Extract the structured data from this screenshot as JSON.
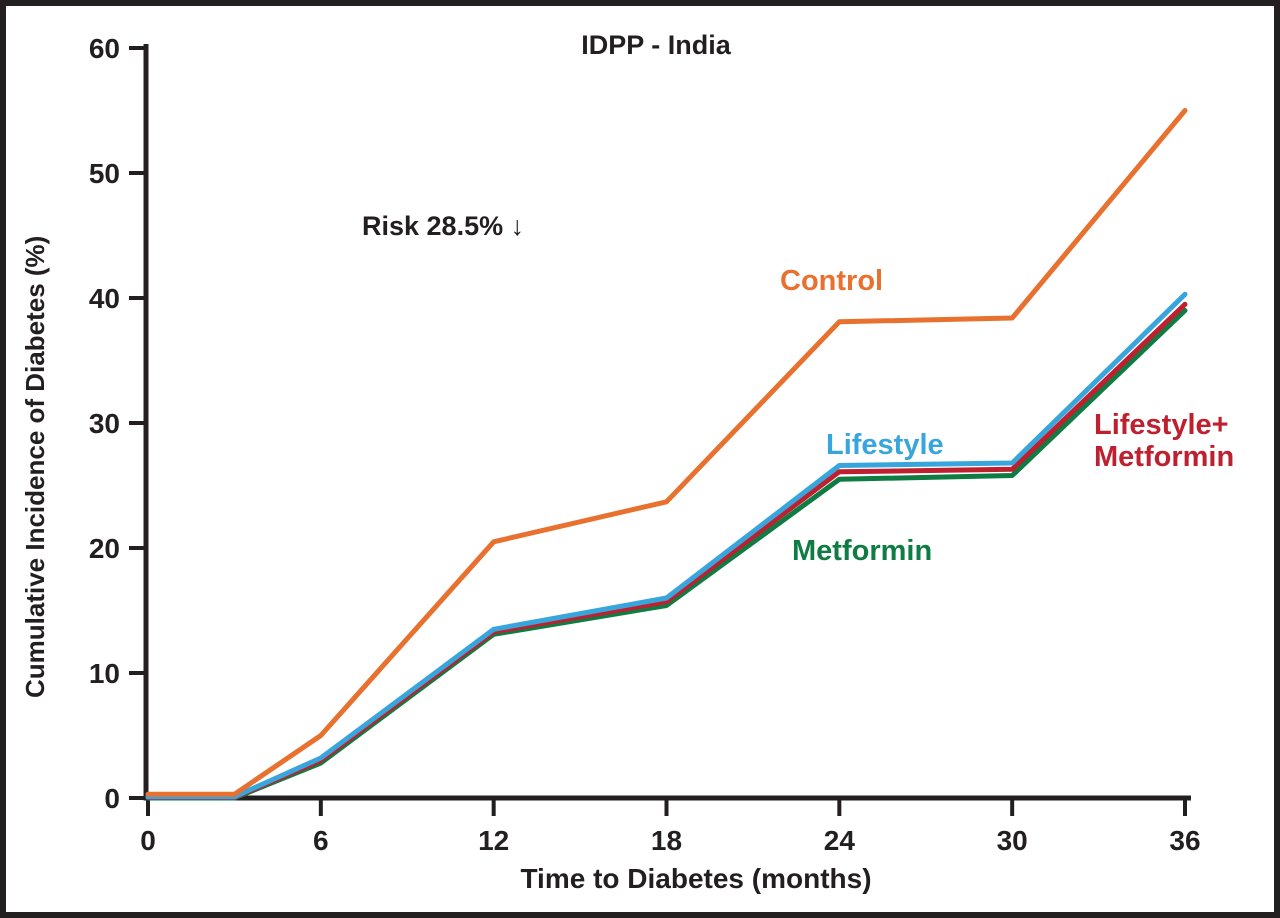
{
  "colors": {
    "ink": "#231F20",
    "background": "#ffffff",
    "control_orange": "#E8712F",
    "lifestyle_blue": "#38A6DC",
    "lifestyle_metformin_red": "#BE202F",
    "metformin_green": "#0E7C43"
  },
  "chart_data": {
    "type": "line",
    "title": "IDPP - India",
    "annotation": "Risk 28.5% ↓",
    "xlabel": "Time to Diabetes (months)",
    "ylabel": "Cumulative Incidence of Diabetes (%)",
    "xlim": [
      0,
      36
    ],
    "ylim": [
      0,
      60
    ],
    "x_ticks": [
      0,
      6,
      12,
      18,
      24,
      30,
      36
    ],
    "y_ticks": [
      0,
      10,
      20,
      30,
      40,
      50,
      60
    ],
    "grid": false,
    "legend_position": "inline-labels",
    "x": [
      0,
      3,
      6,
      12,
      18,
      24,
      30,
      36
    ],
    "series": [
      {
        "name": "Control",
        "label": "Control",
        "color": "#E8712F",
        "values": [
          0.3,
          0.3,
          5.0,
          20.5,
          23.7,
          38.1,
          38.4,
          55.0
        ]
      },
      {
        "name": "Lifestyle",
        "label": "Lifestyle",
        "color": "#38A6DC",
        "values": [
          0.1,
          0.1,
          3.2,
          13.5,
          16.0,
          26.6,
          26.8,
          40.3
        ]
      },
      {
        "name": "Lifestyle+Metformin",
        "label": "Lifestyle+\nMetformin",
        "color": "#BE202F",
        "values": [
          0.05,
          0.05,
          3.0,
          13.3,
          15.7,
          26.1,
          26.3,
          39.5
        ]
      },
      {
        "name": "Metformin",
        "label": "Metformin",
        "color": "#0E7C43",
        "values": [
          0.0,
          0.0,
          2.8,
          13.1,
          15.4,
          25.5,
          25.8,
          39.0
        ]
      }
    ]
  }
}
